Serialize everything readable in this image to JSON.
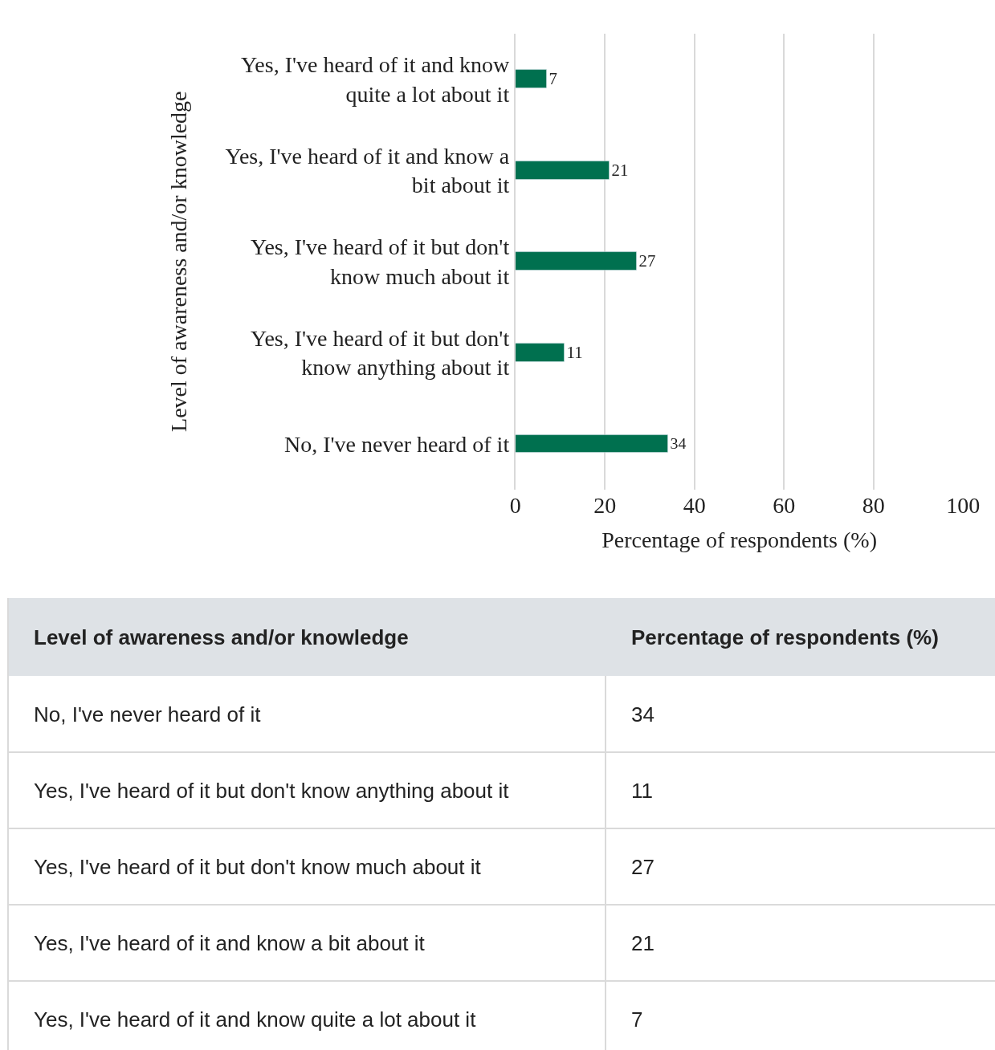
{
  "chart_data": [
    {
      "type": "bar",
      "orientation": "horizontal",
      "categories": [
        "Yes, I've heard of it and know quite a lot about it",
        "Yes, I've heard of it and know a bit about it",
        "Yes, I've heard of it but don't know much about it",
        "Yes, I've heard of it but don't know anything about it",
        "No, I've never heard of it"
      ],
      "values": [
        7,
        21,
        27,
        11,
        34
      ],
      "color": "#00704f",
      "xlabel": "Percentage of respondents (%)",
      "ylabel": "Level of awareness and/or knowledge",
      "xlim": [
        0,
        100
      ],
      "xticks": [
        0,
        20,
        40,
        60,
        80,
        100
      ],
      "grid": "x",
      "data_labels": true,
      "legend": false
    },
    {
      "type": "other",
      "annotations": [
        "Level of awareness and/or knowledge",
        "Percentage of respondents (%)"
      ],
      "categories": [
        "No, I've never heard of it",
        "Yes, I've heard of it but don't know anything about it",
        "Yes, I've heard of it but don't know much about it",
        "Yes, I've heard of it and know a bit about it",
        "Yes, I've heard of it and know quite a lot about it"
      ],
      "values": [
        34,
        11,
        27,
        21,
        7
      ],
      "data_labels": true
    }
  ]
}
